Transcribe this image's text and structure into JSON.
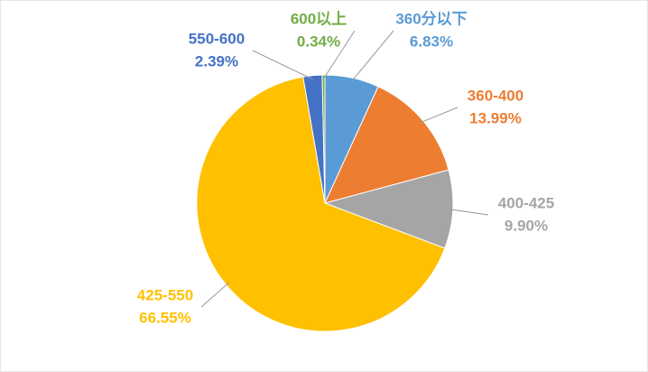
{
  "chart_data": {
    "type": "pie",
    "categories": [
      "360分以下",
      "360-400",
      "400-425",
      "425-550",
      "550-600",
      "600以上"
    ],
    "values": [
      6.83,
      13.99,
      9.9,
      66.55,
      2.39,
      0.34
    ],
    "value_labels": [
      "6.83%",
      "13.99%",
      "9.90%",
      "66.55%",
      "2.39%",
      "0.34%"
    ],
    "colors": [
      "#5b9bd5",
      "#ed7d31",
      "#a5a5a5",
      "#ffc000",
      "#4472c4",
      "#70ad47"
    ]
  }
}
